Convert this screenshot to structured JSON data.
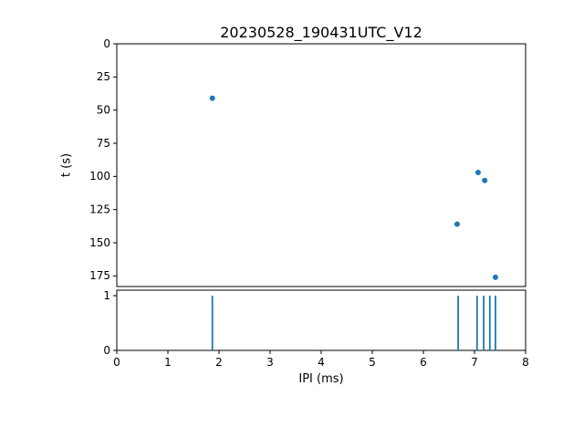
{
  "figure": {
    "background": "#ffffff",
    "accent_color": "#1f77b4"
  },
  "chart_data": [
    {
      "type": "scatter",
      "title": "20230528_190431UTC_V12",
      "xlabel": "",
      "ylabel": "t (s)",
      "xlim": [
        0,
        8
      ],
      "ylim": [
        0,
        183
      ],
      "y_inverted": true,
      "grid": false,
      "legend": "none",
      "xticks": [],
      "yticks": [
        0,
        25,
        50,
        75,
        100,
        125,
        150,
        175
      ],
      "marker_color": "#1f77b4",
      "points": [
        {
          "x": 1.87,
          "y": 41
        },
        {
          "x": 6.66,
          "y": 136
        },
        {
          "x": 7.07,
          "y": 97
        },
        {
          "x": 7.2,
          "y": 103
        },
        {
          "x": 7.41,
          "y": 176
        }
      ]
    },
    {
      "type": "spike",
      "title": "",
      "xlabel": "IPI (ms)",
      "ylabel": "",
      "xlim": [
        0,
        8
      ],
      "ylim": [
        0,
        1.1
      ],
      "y_inverted": false,
      "grid": false,
      "legend": "none",
      "xticks": [
        0,
        1,
        2,
        3,
        4,
        5,
        6,
        7,
        8
      ],
      "yticks": [
        0,
        1
      ],
      "line_color": "#1f77b4",
      "spike_height": 1,
      "spikes_x": [
        1.87,
        6.68,
        7.05,
        7.18,
        7.3,
        7.41
      ]
    }
  ]
}
